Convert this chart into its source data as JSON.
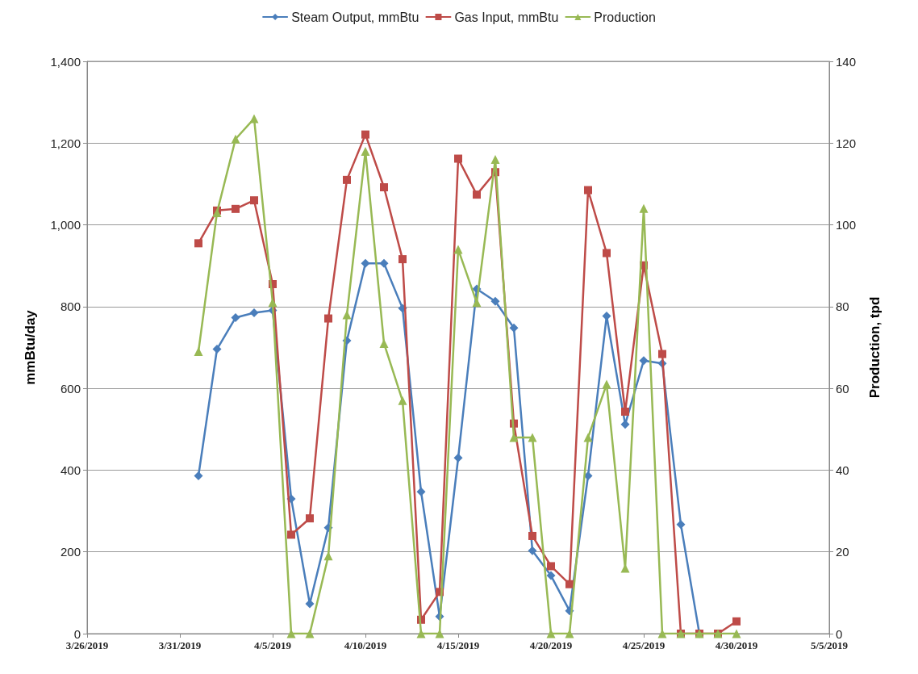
{
  "chart_data": {
    "type": "line",
    "x": [
      "2019-04-01",
      "2019-04-02",
      "2019-04-03",
      "2019-04-04",
      "2019-04-05",
      "2019-04-06",
      "2019-04-07",
      "2019-04-08",
      "2019-04-09",
      "2019-04-10",
      "2019-04-11",
      "2019-04-12",
      "2019-04-13",
      "2019-04-14",
      "2019-04-15",
      "2019-04-16",
      "2019-04-17",
      "2019-04-18",
      "2019-04-19",
      "2019-04-20",
      "2019-04-21",
      "2019-04-22",
      "2019-04-23",
      "2019-04-24",
      "2019-04-25",
      "2019-04-26",
      "2019-04-27",
      "2019-04-28",
      "2019-04-29",
      "2019-04-30"
    ],
    "series": [
      {
        "name": "Steam Output, mmBtu",
        "color": "#4a7ebb",
        "marker": "diamond",
        "values": [
          386,
          696,
          773,
          785,
          791,
          330,
          73,
          259,
          717,
          906,
          906,
          796,
          347,
          42,
          430,
          843,
          813,
          748,
          203,
          142,
          56,
          386,
          777,
          512,
          668,
          661,
          267,
          0,
          null,
          null
        ]
      },
      {
        "name": "Gas Input, mmBtu",
        "color": "#be4b48",
        "marker": "square",
        "values": [
          955,
          1035,
          1039,
          1060,
          855,
          242,
          282,
          771,
          1110,
          1221,
          1092,
          916,
          34,
          102,
          1162,
          1074,
          1129,
          514,
          239,
          165,
          121,
          1085,
          931,
          543,
          901,
          684,
          0,
          0,
          0,
          30
        ]
      },
      {
        "name": "Production",
        "color": "#98b954",
        "marker": "triangle",
        "axis": "y2",
        "values": [
          69,
          103,
          121,
          126,
          81,
          0,
          0,
          19,
          78,
          118,
          71,
          57,
          0,
          0,
          94,
          81,
          116,
          48,
          48,
          0,
          0,
          48,
          61,
          16,
          104,
          0,
          0,
          0,
          0,
          0
        ]
      }
    ],
    "ylabel": "mmBtu/day",
    "y2label": "Production, tpd",
    "xlim": [
      "2019-03-26",
      "2019-05-05"
    ],
    "xticks": [
      {
        "value": "2019-03-26",
        "label": "3/26/2019"
      },
      {
        "value": "2019-03-31",
        "label": "3/31/2019"
      },
      {
        "value": "2019-04-05",
        "label": "4/5/2019"
      },
      {
        "value": "2019-04-10",
        "label": "4/10/2019"
      },
      {
        "value": "2019-04-15",
        "label": "4/15/2019"
      },
      {
        "value": "2019-04-20",
        "label": "4/20/2019"
      },
      {
        "value": "2019-04-25",
        "label": "4/25/2019"
      },
      {
        "value": "2019-04-30",
        "label": "4/30/2019"
      },
      {
        "value": "2019-05-05",
        "label": "5/5/2019"
      }
    ],
    "ylim": [
      0,
      1400
    ],
    "yticks": [
      0,
      200,
      400,
      600,
      800,
      {
        "value": 1000,
        "label": "1,000"
      },
      {
        "value": 1200,
        "label": "1,200"
      },
      {
        "value": 1400,
        "label": "1,400"
      }
    ],
    "y2lim": [
      0,
      140
    ],
    "y2ticks": [
      0,
      20,
      40,
      60,
      80,
      100,
      120,
      140
    ],
    "grid": "y",
    "legend": "top",
    "line_style": "solid"
  }
}
